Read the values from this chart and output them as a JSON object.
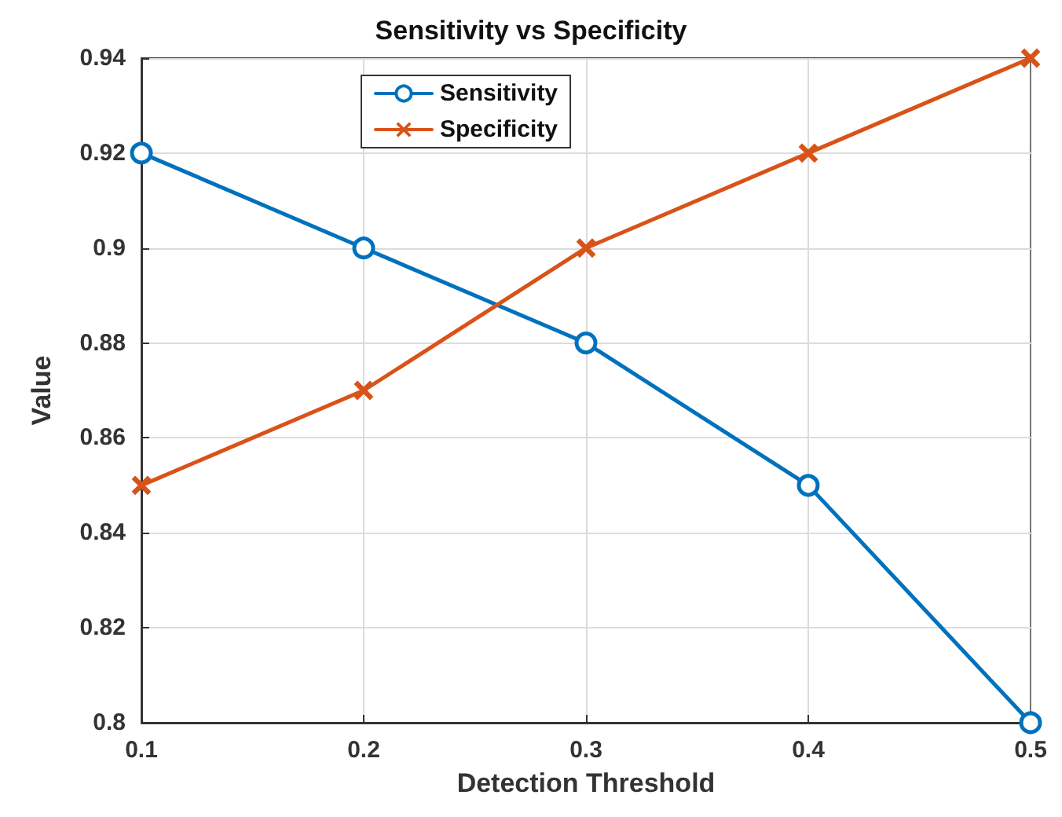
{
  "chart_data": {
    "type": "line",
    "title": "Sensitivity vs Specificity",
    "xlabel": "Detection Threshold",
    "ylabel": "Value",
    "x": [
      0.1,
      0.2,
      0.3,
      0.4,
      0.5
    ],
    "series": [
      {
        "name": "Sensitivity",
        "color": "#0072bd",
        "marker": "circle",
        "values": [
          0.92,
          0.9,
          0.88,
          0.85,
          0.8
        ]
      },
      {
        "name": "Specificity",
        "color": "#d95319",
        "marker": "cross",
        "values": [
          0.85,
          0.87,
          0.9,
          0.92,
          0.94
        ]
      }
    ],
    "xlim": [
      0.1,
      0.5
    ],
    "xticks": [
      0.1,
      0.2,
      0.3,
      0.4,
      0.5
    ],
    "ylim": [
      0.8,
      0.94
    ],
    "yticks": [
      0.8,
      0.82,
      0.84,
      0.86,
      0.88,
      0.9,
      0.92,
      0.94
    ],
    "grid": true,
    "legend": "top",
    "line_style": "solid"
  }
}
